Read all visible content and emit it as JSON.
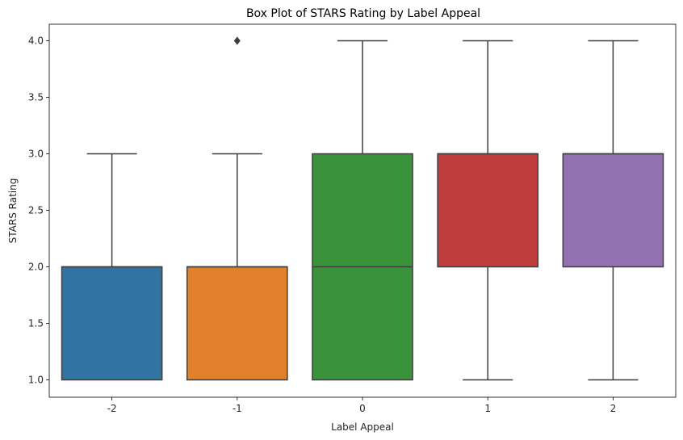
{
  "chart_data": {
    "type": "box",
    "title": "Box Plot of STARS Rating by Label Appeal",
    "xlabel": "Label Appeal",
    "ylabel": "STARS Rating",
    "categories": [
      "-2",
      "-1",
      "0",
      "1",
      "2"
    ],
    "ylim": [
      0.94,
      4.1
    ],
    "yticks": [
      "1.0",
      "1.5",
      "2.0",
      "2.5",
      "3.0",
      "3.5",
      "4.0"
    ],
    "grid": false,
    "boxes": [
      {
        "category": "-2",
        "whisker_low": 1.0,
        "q1": 1.0,
        "median": 2.0,
        "q3": 2.0,
        "whisker_high": 3.0,
        "outliers": [],
        "color": "#3274a1"
      },
      {
        "category": "-1",
        "whisker_low": 1.0,
        "q1": 1.0,
        "median": 2.0,
        "q3": 2.0,
        "whisker_high": 3.0,
        "outliers": [
          4.0
        ],
        "color": "#e1812c"
      },
      {
        "category": "0",
        "whisker_low": 1.0,
        "q1": 1.0,
        "median": 2.0,
        "q3": 3.0,
        "whisker_high": 4.0,
        "outliers": [],
        "color": "#3a923a"
      },
      {
        "category": "1",
        "whisker_low": 1.0,
        "q1": 2.0,
        "median": 3.0,
        "q3": 3.0,
        "whisker_high": 4.0,
        "outliers": [],
        "color": "#c03d3e"
      },
      {
        "category": "2",
        "whisker_low": 1.0,
        "q1": 2.0,
        "median": 3.0,
        "q3": 3.0,
        "whisker_high": 4.0,
        "outliers": [],
        "color": "#9372b2"
      }
    ]
  }
}
